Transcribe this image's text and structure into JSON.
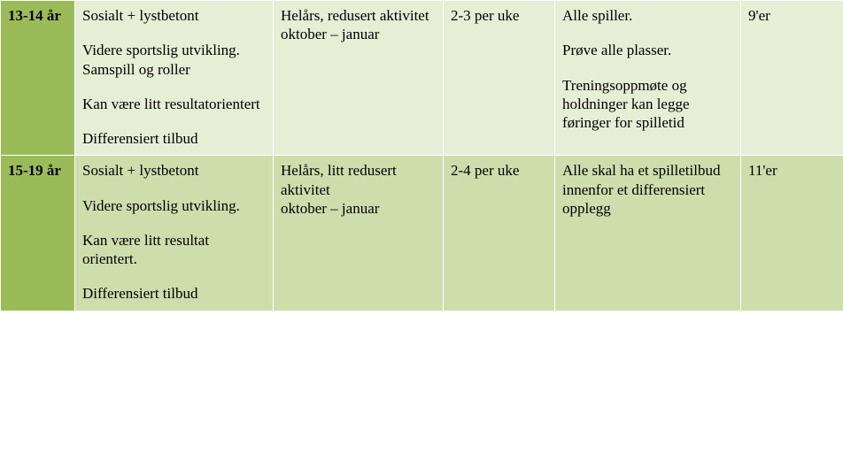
{
  "colors": {
    "row1_header_bg": "#9bbb59",
    "row1_cell_bg": "#e6eed5",
    "row2_header_bg": "#9bbb59",
    "row2_cell_bg": "#cdddac",
    "border": "#ffffff",
    "text": "#000000"
  },
  "columns": [
    "c0",
    "c1",
    "c2",
    "c3",
    "c4",
    "c5"
  ],
  "rows": [
    {
      "age": "13-14 år",
      "col1": [
        "Sosialt + lystbetont",
        "Videre sportslig utvikling. Samspill og roller",
        "Kan være litt resultatorientert",
        "Differensiert tilbud"
      ],
      "col2": "Helårs, redusert aktivitet\noktober – januar",
      "col3": "2-3 per uke",
      "col4": [
        "Alle spiller.",
        "Prøve alle plasser.",
        "Treningsoppmøte og holdninger kan legge føringer for spilletid"
      ],
      "col5": "9'er"
    },
    {
      "age": "15-19 år",
      "col1": [
        "Sosialt + lystbetont",
        "Videre sportslig utvikling.",
        "Kan være litt resultat orientert.",
        "Differensiert tilbud"
      ],
      "col2": "Helårs, litt redusert aktivitet\noktober – januar",
      "col3": "2-4 per uke",
      "col4": [
        "Alle skal ha et spilletilbud innenfor et differensiert opplegg"
      ],
      "col5": "11'er"
    }
  ]
}
